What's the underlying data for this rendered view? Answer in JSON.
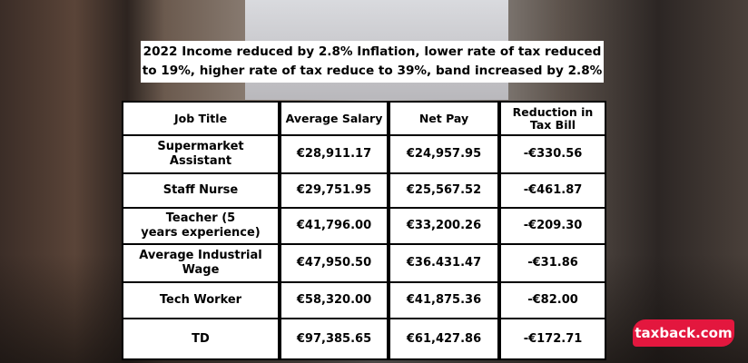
{
  "title": "2022 Income reduced by 2.8% Inflation,  lower rate of tax reduced to 19%, higher rate of tax reduce to 39%, band increased by 2.8%",
  "table": {
    "header": [
      "Job Title",
      "Average Salary",
      "Net Pay",
      "Reduction in Tax Bill"
    ],
    "rows": [
      [
        "Supermarket Assistant",
        "€28,911.17",
        "€24,957.95",
        "-€330.56"
      ],
      [
        "Staff Nurse",
        "€29,751.95",
        "€25,567.52",
        "-€461.87"
      ],
      [
        "Teacher (5\nyears experience)",
        "€41,796.00",
        "€33,200.26",
        "-€209.30"
      ],
      [
        "Average Industrial Wage",
        "€47,950.50",
        "€36.431.47",
        "-€31.86"
      ],
      [
        "Tech Worker",
        "€58,320.00",
        "€41,875.36",
        "-€82.00"
      ],
      [
        "TD",
        "€97,385.65",
        "€61,427.86",
        "-€172.71"
      ]
    ]
  },
  "logo": "taxback.com"
}
